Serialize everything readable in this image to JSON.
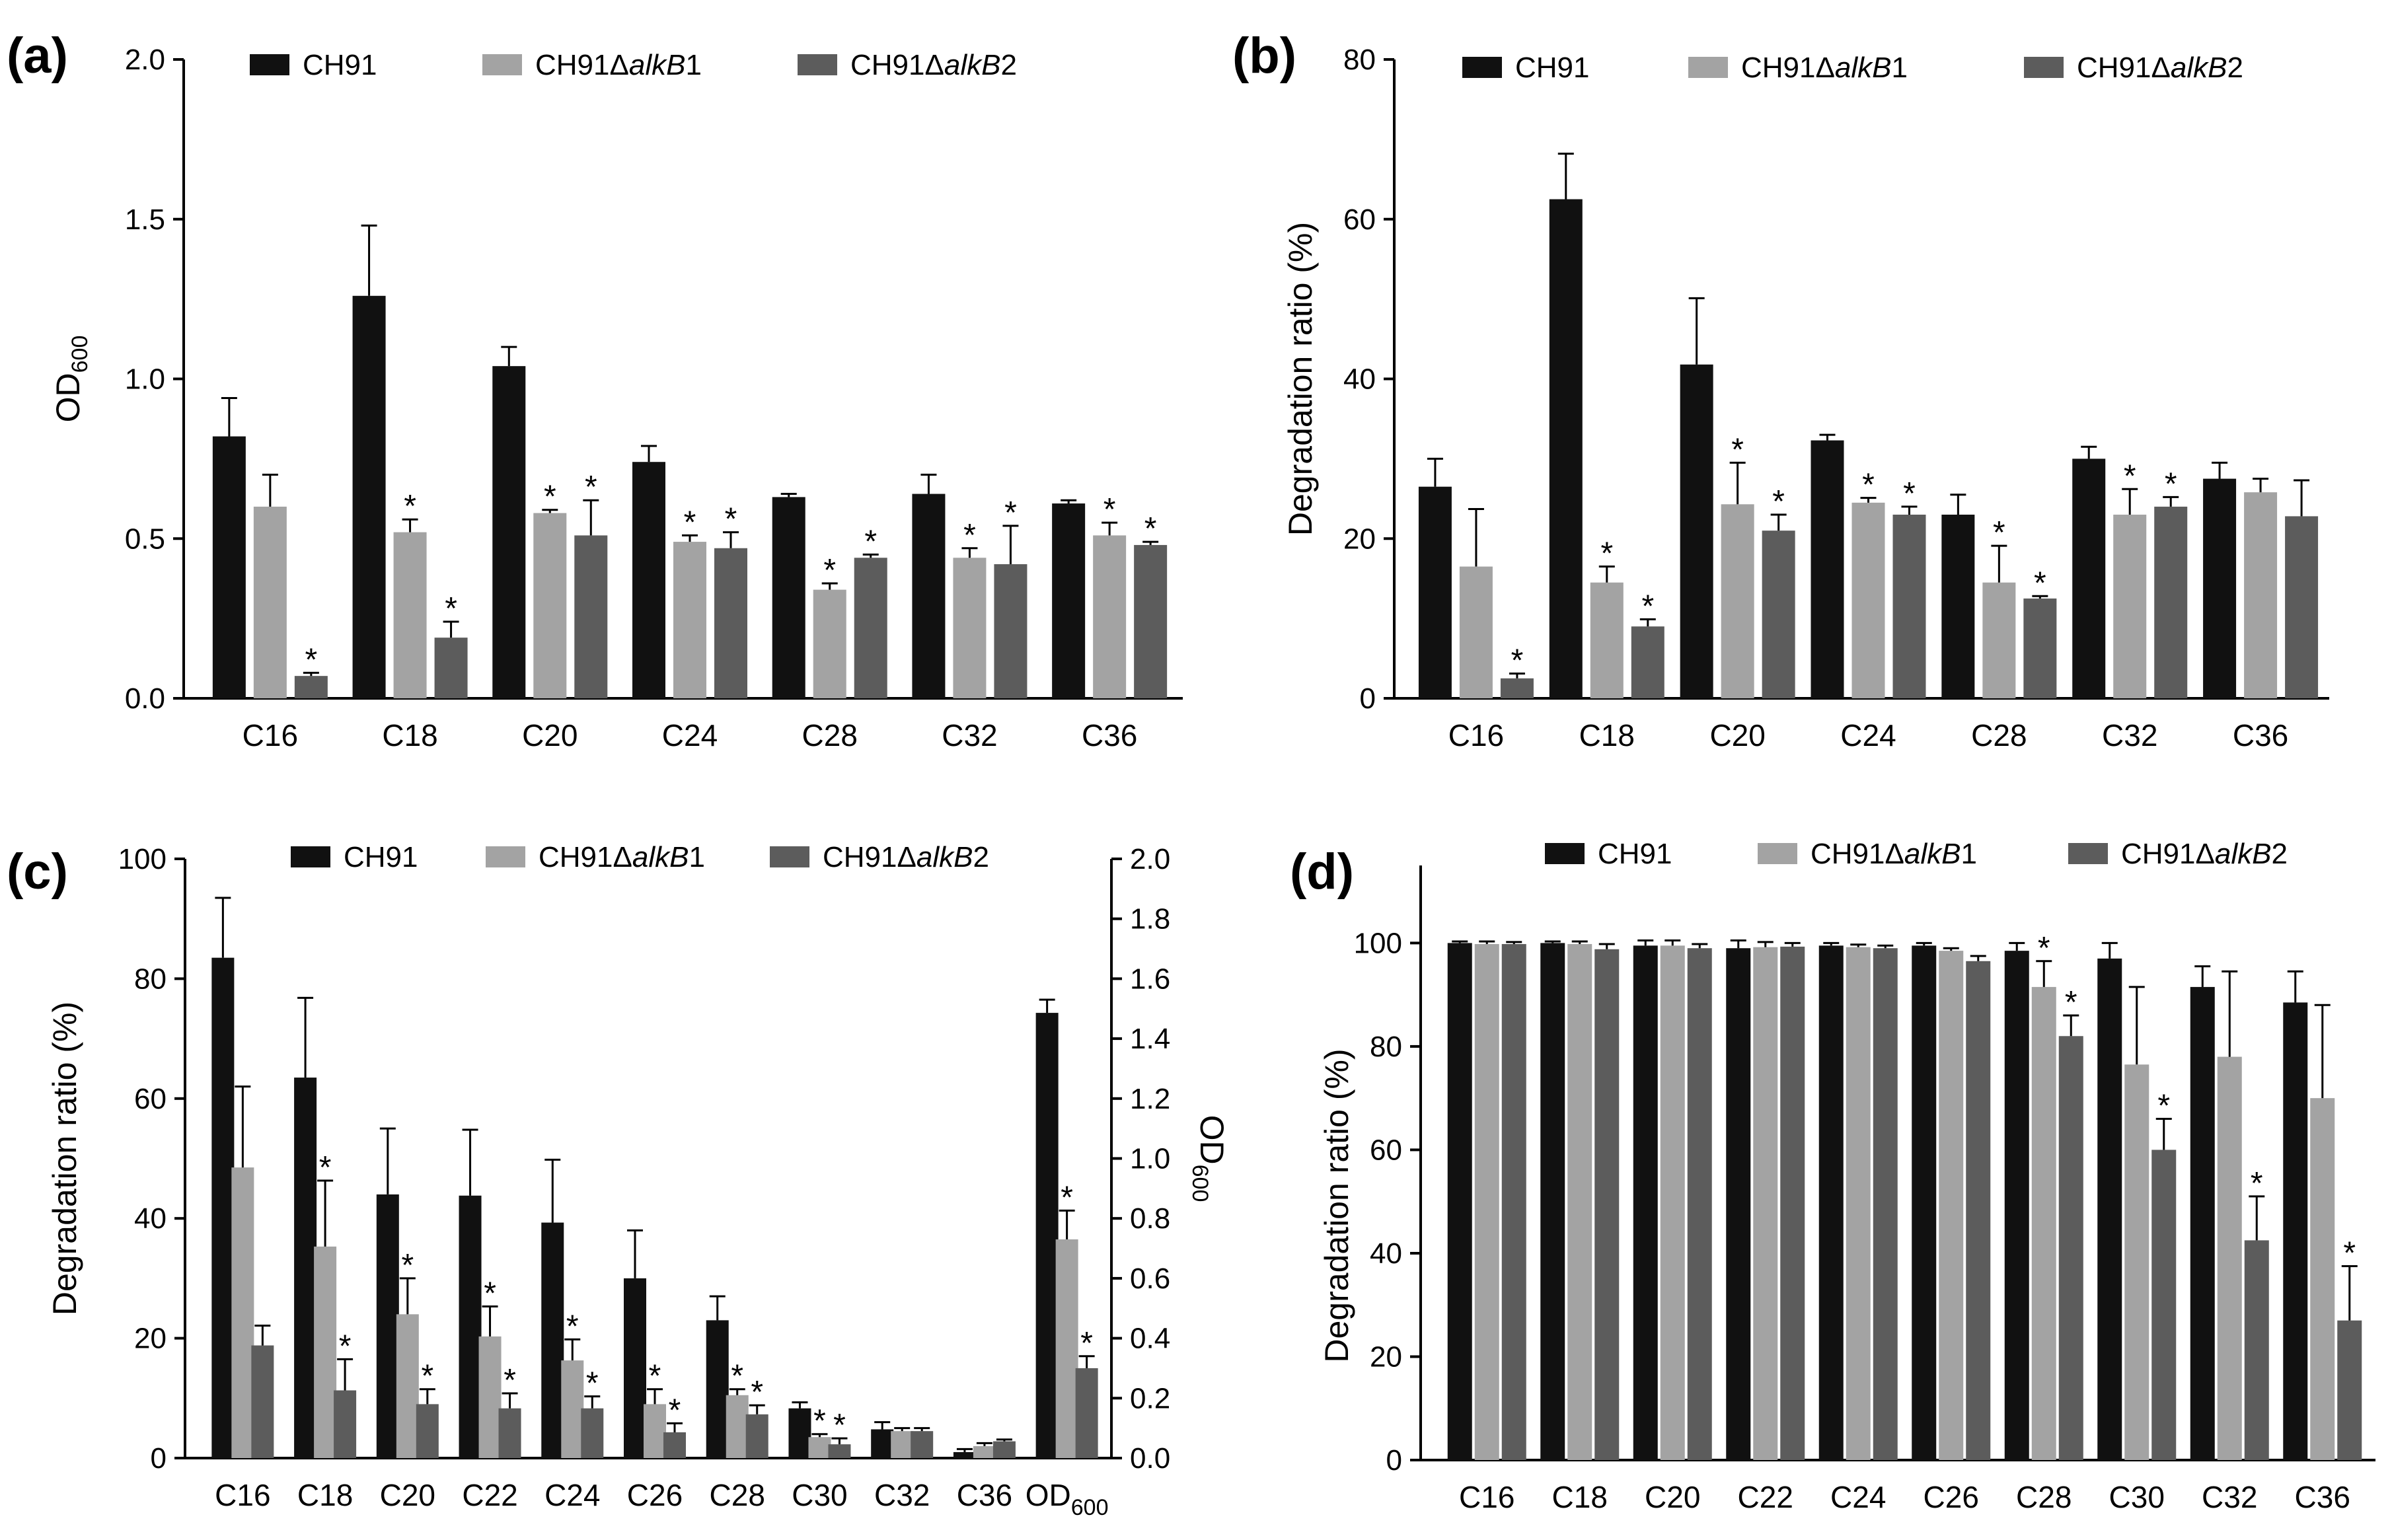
{
  "figure": {
    "colors": {
      "CH91": "#111111",
      "CH91ΔalkB1": "#a3a3a3",
      "CH91ΔalkB2": "#5c5c5c"
    },
    "legend_series": [
      {
        "prefix": "CH91",
        "italic": "",
        "suffix": ""
      },
      {
        "prefix": "CH91Δ",
        "italic": "alkB",
        "suffix": "1"
      },
      {
        "prefix": "CH91Δ",
        "italic": "alkB",
        "suffix": "2"
      }
    ]
  },
  "chart_data": [
    {
      "panel": "(a)",
      "type": "bar",
      "ylabel": "OD600",
      "ylabel_main": "OD",
      "ylabel_sub": "600",
      "ylim": [
        0,
        2.0
      ],
      "yticks": [
        "0.0",
        "0.5",
        "1.0",
        "1.5",
        "2.0"
      ],
      "categories": [
        "C16",
        "C18",
        "C20",
        "C24",
        "C28",
        "C32",
        "C36"
      ],
      "series": [
        {
          "name": "CH91",
          "values": [
            0.82,
            1.26,
            1.04,
            0.74,
            0.63,
            0.64,
            0.61
          ],
          "errors": [
            0.12,
            0.22,
            0.06,
            0.05,
            0.01,
            0.06,
            0.01
          ],
          "stars": [
            false,
            false,
            false,
            false,
            false,
            false,
            false
          ]
        },
        {
          "name": "CH91ΔalkB1",
          "values": [
            0.6,
            0.52,
            0.58,
            0.49,
            0.34,
            0.44,
            0.51
          ],
          "errors": [
            0.1,
            0.04,
            0.01,
            0.02,
            0.02,
            0.03,
            0.04
          ],
          "stars": [
            false,
            true,
            true,
            true,
            true,
            true,
            true
          ]
        },
        {
          "name": "CH91ΔalkB2",
          "values": [
            0.07,
            0.19,
            0.51,
            0.47,
            0.44,
            0.42,
            0.48
          ],
          "errors": [
            0.01,
            0.05,
            0.11,
            0.05,
            0.01,
            0.12,
            0.01
          ],
          "stars": [
            true,
            true,
            true,
            true,
            true,
            true,
            true
          ]
        }
      ]
    },
    {
      "panel": "(b)",
      "type": "bar",
      "ylabel": "Degradation ratio (%)",
      "ylim": [
        0,
        80
      ],
      "yticks": [
        "0",
        "20",
        "40",
        "60",
        "80"
      ],
      "categories": [
        "C16",
        "C18",
        "C20",
        "C24",
        "C28",
        "C32",
        "C36"
      ],
      "series": [
        {
          "name": "CH91",
          "values": [
            26.5,
            62.5,
            41.8,
            32.3,
            23.0,
            30.0,
            27.5
          ],
          "errors": [
            3.5,
            5.7,
            8.3,
            0.7,
            2.5,
            1.5,
            2.0
          ],
          "stars": [
            false,
            false,
            false,
            false,
            false,
            false,
            false
          ]
        },
        {
          "name": "CH91ΔalkB1",
          "values": [
            16.5,
            14.5,
            24.3,
            24.5,
            14.5,
            23.0,
            25.8
          ],
          "errors": [
            7.2,
            2.0,
            5.2,
            0.6,
            4.6,
            3.2,
            1.7
          ],
          "stars": [
            false,
            true,
            true,
            true,
            true,
            true,
            false
          ]
        },
        {
          "name": "CH91ΔalkB2",
          "values": [
            2.5,
            9.0,
            21.0,
            23.0,
            12.5,
            24.0,
            22.8
          ],
          "errors": [
            0.6,
            0.9,
            2.0,
            1.0,
            0.3,
            1.2,
            4.5
          ],
          "stars": [
            true,
            true,
            true,
            true,
            true,
            true,
            false
          ]
        }
      ]
    },
    {
      "panel": "(c)",
      "type": "bar",
      "ylabel": "Degradation ratio (%)",
      "ylim": [
        0,
        100
      ],
      "yticks": [
        "0",
        "20",
        "40",
        "60",
        "80",
        "100"
      ],
      "y2label": "OD600",
      "y2label_main": "OD",
      "y2label_sub": "600",
      "y2lim": [
        0,
        2.0
      ],
      "y2ticks": [
        "0.0",
        "0.2",
        "0.4",
        "0.6",
        "0.8",
        "1.0",
        "1.2",
        "1.4",
        "1.6",
        "1.8",
        "2.0"
      ],
      "categories": [
        "C16",
        "C18",
        "C20",
        "C22",
        "C24",
        "C26",
        "C28",
        "C30",
        "C32",
        "C36",
        "OD"
      ],
      "last_category_sub": "600",
      "series": [
        {
          "name": "CH91",
          "values": [
            83.5,
            63.5,
            44.0,
            43.8,
            39.3,
            30.0,
            23.0,
            8.3,
            4.8,
            1.0,
            74.3
          ],
          "errors": [
            10.0,
            13.3,
            11.0,
            11.0,
            10.5,
            8.0,
            4.0,
            1.0,
            1.2,
            0.5,
            2.2
          ],
          "stars": [
            false,
            false,
            false,
            false,
            false,
            false,
            false,
            false,
            false,
            false,
            false
          ]
        },
        {
          "name": "CH91ΔalkB1",
          "values": [
            48.5,
            35.3,
            24.0,
            20.3,
            16.3,
            9.0,
            10.5,
            3.5,
            4.5,
            2.0,
            36.5
          ],
          "errors": [
            13.5,
            11.0,
            6.0,
            5.0,
            3.5,
            2.5,
            1.0,
            0.5,
            0.5,
            0.5,
            4.8
          ],
          "stars": [
            false,
            true,
            true,
            true,
            true,
            true,
            true,
            true,
            false,
            false,
            true
          ]
        },
        {
          "name": "CH91ΔalkB2",
          "values": [
            18.8,
            11.3,
            9.0,
            8.3,
            8.3,
            4.3,
            7.3,
            2.3,
            4.5,
            2.8,
            15.0
          ],
          "errors": [
            3.3,
            5.2,
            2.5,
            2.5,
            2.0,
            1.5,
            1.5,
            1.0,
            0.5,
            0.3,
            2.0
          ],
          "stars": [
            false,
            true,
            true,
            true,
            true,
            true,
            true,
            true,
            false,
            false,
            true
          ]
        }
      ]
    },
    {
      "panel": "(d)",
      "type": "bar",
      "ylabel": "Degradation ratio (%)",
      "ylim": [
        0,
        115
      ],
      "yticks": [
        "0",
        "20",
        "40",
        "60",
        "80",
        "100"
      ],
      "categories": [
        "C16",
        "C18",
        "C20",
        "C22",
        "C24",
        "C26",
        "C28",
        "C30",
        "C32",
        "C36"
      ],
      "series": [
        {
          "name": "CH91",
          "values": [
            100,
            100,
            99.5,
            99,
            99.5,
            99.5,
            98.5,
            97,
            91.5,
            88.5
          ],
          "errors": [
            0.3,
            0.3,
            1.0,
            1.5,
            0.5,
            0.5,
            1.5,
            3.0,
            4.0,
            6.0
          ],
          "stars": [
            false,
            false,
            false,
            false,
            false,
            false,
            false,
            false,
            false,
            false
          ]
        },
        {
          "name": "CH91ΔalkB1",
          "values": [
            99.8,
            99.8,
            99.5,
            99.2,
            99.2,
            98.5,
            91.5,
            76.5,
            78.0,
            70.0
          ],
          "errors": [
            0.5,
            0.5,
            1.0,
            1.0,
            0.5,
            0.5,
            5.0,
            15.0,
            16.5,
            18.0
          ],
          "stars": [
            false,
            false,
            false,
            false,
            false,
            false,
            true,
            false,
            false,
            false
          ]
        },
        {
          "name": "CH91ΔalkB2",
          "values": [
            99.8,
            98.8,
            99.0,
            99.3,
            99.0,
            96.5,
            82.0,
            60.0,
            42.5,
            27.0
          ],
          "errors": [
            0.4,
            1.0,
            0.8,
            0.7,
            0.5,
            1.0,
            4.0,
            6.0,
            8.5,
            10.5
          ],
          "stars": [
            false,
            false,
            false,
            false,
            false,
            false,
            true,
            true,
            true,
            true
          ]
        }
      ]
    }
  ]
}
